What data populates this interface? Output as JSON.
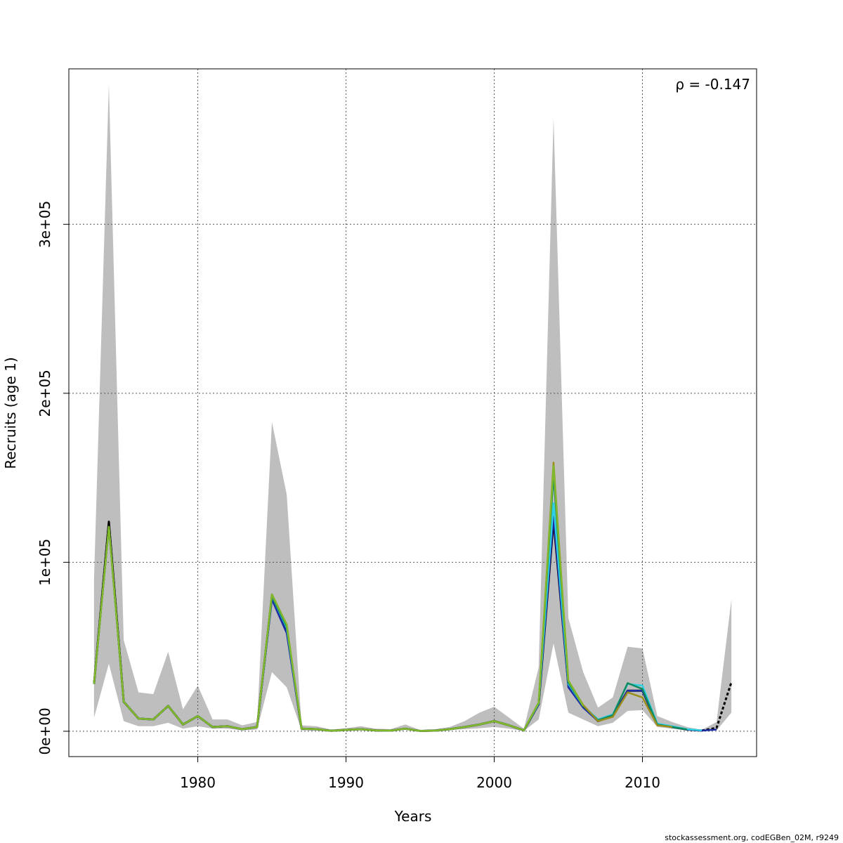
{
  "chart_data": {
    "type": "line",
    "title": "",
    "xlabel": "Years",
    "ylabel": "Recruits (age 1)",
    "xlim": [
      1971.3,
      2017.7
    ],
    "ylim": [
      -15000,
      392000
    ],
    "x_ticks": [
      1980,
      1990,
      2000,
      2010
    ],
    "x_tick_labels": [
      "1980",
      "1990",
      "2000",
      "2010"
    ],
    "y_ticks": [
      0,
      100000,
      200000,
      300000
    ],
    "y_tick_labels": [
      "0e+00",
      "1e+05",
      "2e+05",
      "3e+05"
    ],
    "grid": true,
    "annotation": "ρ = -0.147",
    "footer": "stockassessment.org, codEGBen_02M, r9249",
    "band": {
      "color": "#bebebe",
      "x": [
        1973,
        1974,
        1975,
        1976,
        1977,
        1978,
        1979,
        1980,
        1981,
        1982,
        1983,
        1984,
        1985,
        1986,
        1987,
        1988,
        1989,
        1990,
        1991,
        1992,
        1993,
        1994,
        1995,
        1996,
        1997,
        1998,
        1999,
        2000,
        2001,
        2002,
        2003,
        2004,
        2005,
        2006,
        2007,
        2008,
        2009,
        2010,
        2011,
        2012,
        2013,
        2014,
        2015,
        2016
      ],
      "lower": [
        8000,
        40000,
        6000,
        3000,
        3000,
        5000,
        1500,
        3000,
        1500,
        1500,
        500,
        1000,
        35000,
        26000,
        500,
        400,
        200,
        400,
        700,
        300,
        300,
        800,
        100,
        200,
        800,
        1200,
        1800,
        2500,
        1500,
        200,
        7000,
        52000,
        11000,
        7000,
        3000,
        5000,
        12000,
        12500,
        2500,
        1500,
        800,
        300,
        500,
        11000
      ],
      "upper": [
        90000,
        383000,
        54000,
        23000,
        22000,
        47000,
        13000,
        27000,
        7000,
        7000,
        3500,
        5500,
        183000,
        140000,
        3500,
        3000,
        1000,
        1800,
        3000,
        1500,
        1200,
        4000,
        700,
        1200,
        2500,
        6000,
        11000,
        14500,
        8000,
        1500,
        38000,
        363000,
        67000,
        35000,
        14000,
        20000,
        50000,
        49000,
        9000,
        5500,
        2500,
        800,
        5500,
        78000
      ]
    },
    "series": [
      {
        "color": "#000000",
        "dashed_from": 2014,
        "x": [
          1973,
          1974,
          1975,
          1976,
          1977,
          1978,
          1979,
          1980,
          1981,
          1982,
          1983,
          1984,
          1985,
          1986,
          1987,
          1988,
          1989,
          1990,
          1991,
          1992,
          1993,
          1994,
          1995,
          1996,
          1997,
          1998,
          1999,
          2000,
          2001,
          2002,
          2003,
          2004,
          2005,
          2006,
          2007,
          2008,
          2009,
          2010,
          2011,
          2012,
          2013,
          2014,
          2015,
          2016
        ],
        "values": [
          28000,
          124000,
          17500,
          7500,
          7000,
          15000,
          4000,
          9000,
          2500,
          3000,
          1200,
          2500,
          80000,
          60000,
          1500,
          1200,
          300,
          800,
          1200,
          500,
          400,
          1500,
          200,
          400,
          1200,
          2500,
          4000,
          6000,
          3500,
          500,
          16000,
          125000,
          27000,
          15000,
          6000,
          9000,
          24000,
          24000,
          4000,
          2500,
          1000,
          400,
          2000,
          29000
        ]
      },
      {
        "color": "#1c2aa5",
        "x": [
          1973,
          1974,
          1975,
          1976,
          1977,
          1978,
          1979,
          1980,
          1981,
          1982,
          1983,
          1984,
          1985,
          1986,
          1987,
          1988,
          1989,
          1990,
          1991,
          1992,
          1993,
          1994,
          1995,
          1996,
          1997,
          1998,
          1999,
          2000,
          2001,
          2002,
          2003,
          2004,
          2005,
          2006,
          2007,
          2008,
          2009,
          2010,
          2011,
          2012,
          2013,
          2014,
          2015
        ],
        "values": [
          28000,
          121000,
          17500,
          7500,
          7000,
          15000,
          4000,
          9000,
          2500,
          3000,
          1200,
          2500,
          78000,
          58000,
          1500,
          1200,
          300,
          800,
          1200,
          500,
          400,
          1500,
          200,
          400,
          1200,
          2500,
          4000,
          6000,
          3500,
          500,
          16000,
          127000,
          26000,
          14000,
          6000,
          9000,
          24000,
          24000,
          4000,
          2500,
          1000,
          400,
          1000
        ]
      },
      {
        "color": "#2ed1e6",
        "x": [
          1973,
          1974,
          1975,
          1976,
          1977,
          1978,
          1979,
          1980,
          1981,
          1982,
          1983,
          1984,
          1985,
          1986,
          1987,
          1988,
          1989,
          1990,
          1991,
          1992,
          1993,
          1994,
          1995,
          1996,
          1997,
          1998,
          1999,
          2000,
          2001,
          2002,
          2003,
          2004,
          2005,
          2006,
          2007,
          2008,
          2009,
          2010,
          2011,
          2012,
          2013,
          2014
        ],
        "values": [
          28000,
          121000,
          17500,
          7500,
          7000,
          15000,
          4000,
          9000,
          2500,
          3000,
          1200,
          2500,
          80000,
          61000,
          1500,
          1200,
          300,
          800,
          1200,
          500,
          400,
          1500,
          200,
          400,
          1200,
          2500,
          4000,
          6000,
          3500,
          500,
          16500,
          135000,
          28000,
          15000,
          7000,
          10000,
          28000,
          27000,
          4500,
          3000,
          1200,
          500
        ]
      },
      {
        "color": "#0f8a5f",
        "x": [
          1973,
          1974,
          1975,
          1976,
          1977,
          1978,
          1979,
          1980,
          1981,
          1982,
          1983,
          1984,
          1985,
          1986,
          1987,
          1988,
          1989,
          1990,
          1991,
          1992,
          1993,
          1994,
          1995,
          1996,
          1997,
          1998,
          1999,
          2000,
          2001,
          2002,
          2003,
          2004,
          2005,
          2006,
          2007,
          2008,
          2009,
          2010,
          2011,
          2012,
          2013
        ],
        "values": [
          28000,
          121000,
          17500,
          7500,
          7000,
          15000,
          4000,
          9000,
          2500,
          3000,
          1200,
          2500,
          80000,
          62000,
          1500,
          1200,
          300,
          800,
          1200,
          500,
          400,
          1500,
          200,
          400,
          1200,
          2500,
          4000,
          6000,
          3500,
          500,
          17000,
          152000,
          29000,
          15000,
          6500,
          9500,
          28500,
          25000,
          4000,
          2500,
          1000
        ]
      },
      {
        "color": "#9a8f1c",
        "x": [
          1973,
          1974,
          1975,
          1976,
          1977,
          1978,
          1979,
          1980,
          1981,
          1982,
          1983,
          1984,
          1985,
          1986,
          1987,
          1988,
          1989,
          1990,
          1991,
          1992,
          1993,
          1994,
          1995,
          1996,
          1997,
          1998,
          1999,
          2000,
          2001,
          2002,
          2003,
          2004,
          2005,
          2006,
          2007,
          2008,
          2009,
          2010,
          2011,
          2012
        ],
        "values": [
          28000,
          121000,
          17500,
          7500,
          7000,
          15000,
          4000,
          9000,
          2500,
          3000,
          1200,
          2500,
          81000,
          63000,
          1500,
          1200,
          300,
          800,
          1200,
          500,
          400,
          1500,
          200,
          400,
          1200,
          2500,
          4000,
          6000,
          3500,
          500,
          17000,
          159000,
          30000,
          15500,
          6000,
          8500,
          23000,
          20000,
          3500,
          2500
        ]
      },
      {
        "color": "#7fb82a",
        "x": [
          1973,
          1974,
          1975,
          1976,
          1977,
          1978,
          1979,
          1980,
          1981,
          1982,
          1983,
          1984,
          1985,
          1986,
          1987,
          1988,
          1989,
          1990,
          1991,
          1992,
          1993,
          1994,
          1995,
          1996,
          1997,
          1998,
          1999,
          2000,
          2001,
          2002,
          2003,
          2004,
          2005,
          2006
        ],
        "values": [
          28000,
          121000,
          17500,
          7500,
          7000,
          15000,
          4000,
          9000,
          2500,
          3000,
          1200,
          2500,
          81000,
          63000,
          1500,
          1200,
          300,
          800,
          1200,
          500,
          400,
          1500,
          200,
          400,
          1200,
          2500,
          4000,
          6000,
          3500,
          500,
          17000,
          157000,
          30000,
          15000
        ]
      }
    ]
  }
}
